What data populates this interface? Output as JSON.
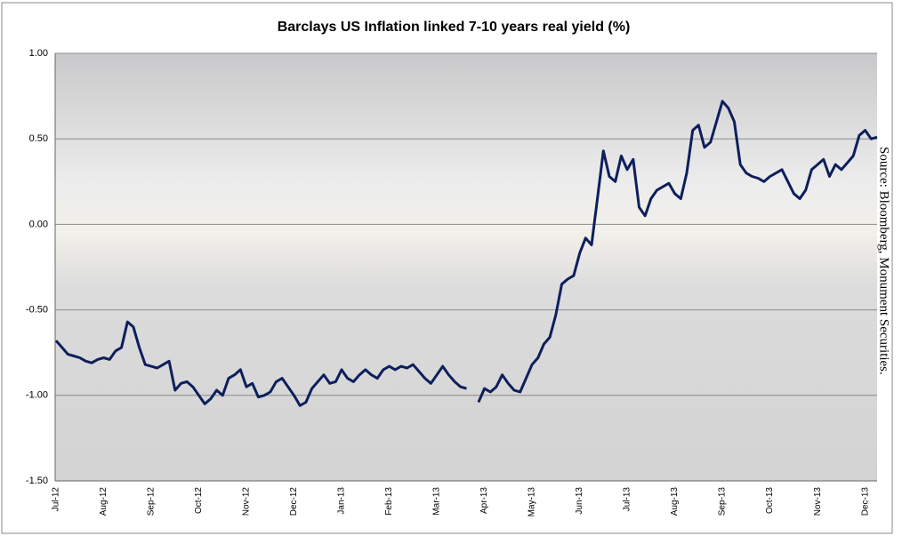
{
  "chart_data": {
    "type": "line",
    "title": "Barclays US Inflation linked 7-10 years real yield (%)",
    "source": "Source: Bloomberg, Monument Securities.",
    "categories": [
      "Jul-12",
      null,
      null,
      null,
      null,
      null,
      null,
      null,
      "Aug-12",
      null,
      null,
      null,
      null,
      null,
      null,
      null,
      "Sep-12",
      null,
      null,
      null,
      null,
      null,
      null,
      null,
      "Oct-12",
      null,
      null,
      null,
      null,
      null,
      null,
      null,
      "Nov-12",
      null,
      null,
      null,
      null,
      null,
      null,
      null,
      "Dec-12",
      null,
      null,
      null,
      null,
      null,
      null,
      null,
      "Jan-13",
      null,
      null,
      null,
      null,
      null,
      null,
      null,
      "Feb-13",
      null,
      null,
      null,
      null,
      null,
      null,
      null,
      "Mar-13",
      null,
      null,
      null,
      null,
      null,
      null,
      null,
      "Apr-13",
      null,
      null,
      null,
      null,
      null,
      null,
      null,
      "May-13",
      null,
      null,
      null,
      null,
      null,
      null,
      null,
      "Jun-13",
      null,
      null,
      null,
      null,
      null,
      null,
      null,
      "Jul-13",
      null,
      null,
      null,
      null,
      null,
      null,
      null,
      "Aug-13",
      null,
      null,
      null,
      null,
      null,
      null,
      null,
      "Sep-13",
      null,
      null,
      null,
      null,
      null,
      null,
      null,
      "Oct-13",
      null,
      null,
      null,
      null,
      null,
      null,
      null,
      "Nov-13",
      null,
      null,
      null,
      null,
      null,
      null,
      null,
      "Dec-13",
      null,
      null
    ],
    "series": [
      {
        "color": "#0d1f5c",
        "values": [
          -0.68,
          -0.72,
          -0.76,
          -0.77,
          -0.78,
          -0.8,
          -0.81,
          -0.79,
          -0.78,
          -0.79,
          -0.74,
          -0.72,
          -0.57,
          -0.6,
          -0.72,
          -0.82,
          -0.83,
          -0.84,
          -0.82,
          -0.8,
          -0.97,
          -0.93,
          -0.92,
          -0.95,
          -1.0,
          -1.05,
          -1.02,
          -0.97,
          -1.0,
          -0.9,
          -0.88,
          -0.85,
          -0.95,
          -0.93,
          -1.01,
          -1.0,
          -0.98,
          -0.92,
          -0.9,
          -0.95,
          -1.0,
          -1.06,
          -1.04,
          -0.96,
          -0.92,
          -0.88,
          -0.93,
          -0.92,
          -0.85,
          -0.9,
          -0.92,
          -0.88,
          -0.85,
          -0.88,
          -0.9,
          -0.85,
          -0.83,
          -0.85,
          -0.83,
          -0.84,
          -0.82,
          -0.86,
          -0.9,
          -0.93,
          -0.88,
          -0.83,
          -0.88,
          -0.92,
          -0.95,
          -0.96,
          null,
          -1.04,
          -0.96,
          -0.98,
          -0.95,
          -0.88,
          -0.93,
          -0.97,
          -0.98,
          -0.9,
          -0.82,
          -0.78,
          -0.7,
          -0.66,
          -0.53,
          -0.35,
          -0.32,
          -0.3,
          -0.17,
          -0.08,
          -0.12,
          0.15,
          0.43,
          0.28,
          0.25,
          0.4,
          0.32,
          0.38,
          0.1,
          0.05,
          0.15,
          0.2,
          0.22,
          0.24,
          0.18,
          0.15,
          0.3,
          0.55,
          0.58,
          0.45,
          0.48,
          0.6,
          0.72,
          0.68,
          0.6,
          0.35,
          0.3,
          0.28,
          0.27,
          0.25,
          0.28,
          0.3,
          0.32,
          0.25,
          0.18,
          0.15,
          0.2,
          0.32,
          0.35,
          0.38,
          0.28,
          0.35,
          0.32,
          0.36,
          0.4,
          0.52,
          0.55,
          0.5,
          0.51
        ]
      }
    ],
    "ylim": [
      -1.5,
      1.0
    ],
    "yticks": [
      {
        "value": -1.5,
        "label": "-1.50"
      },
      {
        "value": -1.0,
        "label": "-1.00"
      },
      {
        "value": -0.5,
        "label": "-0.50"
      },
      {
        "value": 0,
        "label": "0.00"
      },
      {
        "value": 0.5,
        "label": "0.50"
      },
      {
        "value": 1.0,
        "label": "1.00"
      }
    ],
    "grid": true
  }
}
